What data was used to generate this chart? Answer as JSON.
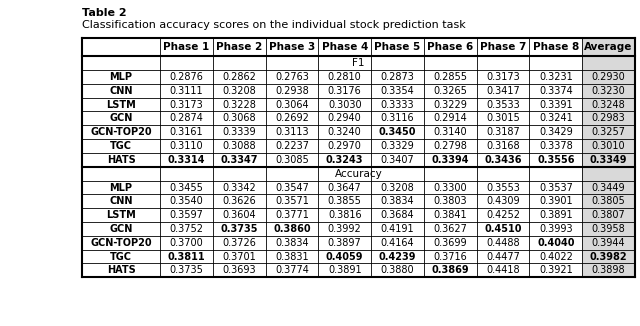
{
  "title_line1": "Table 2",
  "title_line2": "Classification accuracy scores on the individual stock prediction task",
  "columns": [
    "",
    "Phase 1",
    "Phase 2",
    "Phase 3",
    "Phase 4",
    "Phase 5",
    "Phase 6",
    "Phase 7",
    "Phase 8",
    "Average"
  ],
  "f1_section_label": "F1",
  "accuracy_section_label": "Accuracy",
  "f1_rows": [
    {
      "model": "MLP",
      "values": [
        "0.2876",
        "0.2862",
        "0.2763",
        "0.2810",
        "0.2873",
        "0.2855",
        "0.3173",
        "0.3231",
        "0.2930"
      ],
      "bold": []
    },
    {
      "model": "CNN",
      "values": [
        "0.3111",
        "0.3208",
        "0.2938",
        "0.3176",
        "0.3354",
        "0.3265",
        "0.3417",
        "0.3374",
        "0.3230"
      ],
      "bold": []
    },
    {
      "model": "LSTM",
      "values": [
        "0.3173",
        "0.3228",
        "0.3064",
        "0.3030",
        "0.3333",
        "0.3229",
        "0.3533",
        "0.3391",
        "0.3248"
      ],
      "bold": []
    },
    {
      "model": "GCN",
      "values": [
        "0.2874",
        "0.3068",
        "0.2692",
        "0.2940",
        "0.3116",
        "0.2914",
        "0.3015",
        "0.3241",
        "0.2983"
      ],
      "bold": []
    },
    {
      "model": "GCN-TOP20",
      "values": [
        "0.3161",
        "0.3339",
        "0.3113",
        "0.3240",
        "0.3450",
        "0.3140",
        "0.3187",
        "0.3429",
        "0.3257"
      ],
      "bold": [
        4
      ]
    },
    {
      "model": "TGC",
      "values": [
        "0.3110",
        "0.3088",
        "0.2237",
        "0.2970",
        "0.3329",
        "0.2798",
        "0.3168",
        "0.3378",
        "0.3010"
      ],
      "bold": []
    },
    {
      "model": "HATS",
      "values": [
        "0.3314",
        "0.3347",
        "0.3085",
        "0.3243",
        "0.3407",
        "0.3394",
        "0.3436",
        "0.3556",
        "0.3349"
      ],
      "bold": [
        0,
        1,
        3,
        5,
        6,
        7,
        8
      ]
    }
  ],
  "accuracy_rows": [
    {
      "model": "MLP",
      "values": [
        "0.3455",
        "0.3342",
        "0.3547",
        "0.3647",
        "0.3208",
        "0.3300",
        "0.3553",
        "0.3537",
        "0.3449"
      ],
      "bold": []
    },
    {
      "model": "CNN",
      "values": [
        "0.3540",
        "0.3626",
        "0.3571",
        "0.3855",
        "0.3834",
        "0.3803",
        "0.4309",
        "0.3901",
        "0.3805"
      ],
      "bold": []
    },
    {
      "model": "LSTM",
      "values": [
        "0.3597",
        "0.3604",
        "0.3771",
        "0.3816",
        "0.3684",
        "0.3841",
        "0.4252",
        "0.3891",
        "0.3807"
      ],
      "bold": []
    },
    {
      "model": "GCN",
      "values": [
        "0.3752",
        "0.3735",
        "0.3860",
        "0.3992",
        "0.4191",
        "0.3627",
        "0.4510",
        "0.3993",
        "0.3958"
      ],
      "bold": [
        1,
        2,
        6
      ]
    },
    {
      "model": "GCN-TOP20",
      "values": [
        "0.3700",
        "0.3726",
        "0.3834",
        "0.3897",
        "0.4164",
        "0.3699",
        "0.4488",
        "0.4040",
        "0.3944"
      ],
      "bold": [
        7
      ]
    },
    {
      "model": "TGC",
      "values": [
        "0.3811",
        "0.3701",
        "0.3831",
        "0.4059",
        "0.4239",
        "0.3716",
        "0.4477",
        "0.4022",
        "0.3982"
      ],
      "bold": [
        0,
        3,
        4,
        8
      ]
    },
    {
      "model": "HATS",
      "values": [
        "0.3735",
        "0.3693",
        "0.3774",
        "0.3891",
        "0.3880",
        "0.3869",
        "0.4418",
        "0.3921",
        "0.3898"
      ],
      "bold": [
        5
      ]
    }
  ],
  "avg_col_bg": "#d9d9d9",
  "white_bg": "#ffffff",
  "font_size": 7.0,
  "header_font_size": 7.5,
  "title1_fontsize": 8.0,
  "title2_fontsize": 8.0
}
